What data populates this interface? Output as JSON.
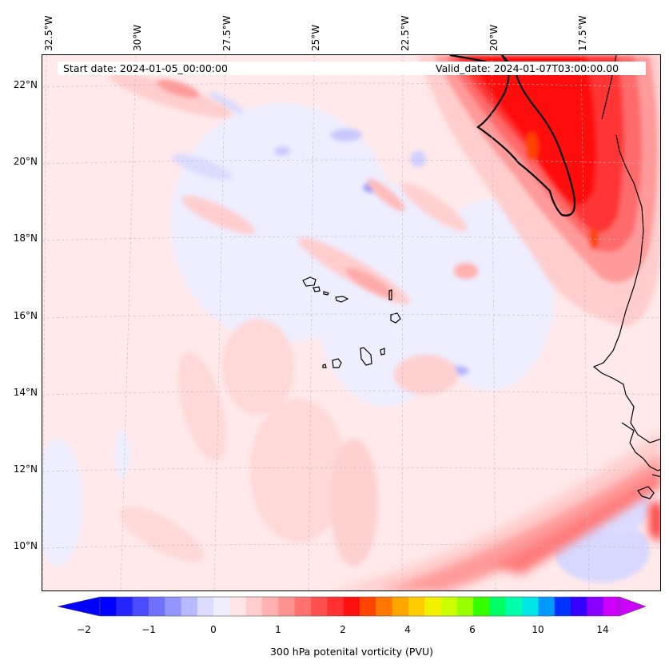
{
  "map": {
    "start_date": "Start date: 2024-01-05_00:00:00",
    "valid_date": "Valid_date: 2024-01-07T03:00:00.00",
    "lon_labels": [
      "32.5°W",
      "30°W",
      "27.5°W",
      "25°W",
      "22.5°W",
      "20°W",
      "17.5°W"
    ],
    "lat_labels": [
      "22°N",
      "20°N",
      "18°N",
      "16°N",
      "14°N",
      "12°N",
      "10°N"
    ],
    "contour_line_pvu": 2
  },
  "colorbar": {
    "label": "300 hPa potenital vorticity (PVU)",
    "tick_labels": [
      "−2",
      "−1",
      "0",
      "1",
      "2",
      "4",
      "6",
      "10",
      "14"
    ],
    "colors": [
      "#0000ff",
      "#2525ff",
      "#4a4aff",
      "#7070ff",
      "#9595ff",
      "#b9b9ff",
      "#dcdcff",
      "#eeeeff",
      "#ffe5e5",
      "#ffcdcd",
      "#ffb0b0",
      "#ff9191",
      "#ff7070",
      "#ff5050",
      "#ff3030",
      "#ff1010",
      "#ff4400",
      "#ff7700",
      "#ffa500",
      "#ffcc00",
      "#f2f200",
      "#ccff00",
      "#99ff00",
      "#33ff00",
      "#00ff66",
      "#00ffaa",
      "#00e5e5",
      "#0099ff",
      "#0033ff",
      "#3300ff",
      "#8800ff",
      "#cc00ff"
    ],
    "under_color": "#0000ff",
    "over_color": "#cc00ff"
  }
}
